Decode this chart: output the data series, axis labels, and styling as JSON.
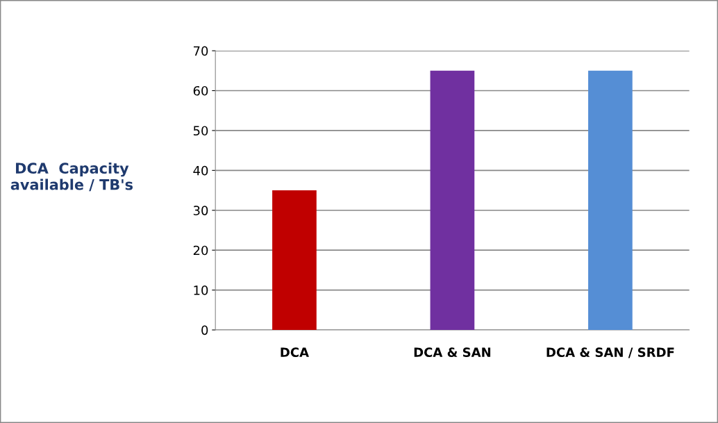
{
  "chart_data": {
    "type": "bar",
    "ylabel": "DCA  Capacity available / TB's",
    "categories": [
      "DCA",
      "DCA & SAN",
      "DCA & SAN / SRDF"
    ],
    "values": [
      35,
      65,
      65
    ],
    "colors": [
      "#c00000",
      "#7030a0",
      "#558ed5"
    ],
    "ylim": [
      0,
      70
    ],
    "yticks": [
      0,
      10,
      20,
      30,
      40,
      50,
      60,
      70
    ],
    "grid": "y"
  }
}
